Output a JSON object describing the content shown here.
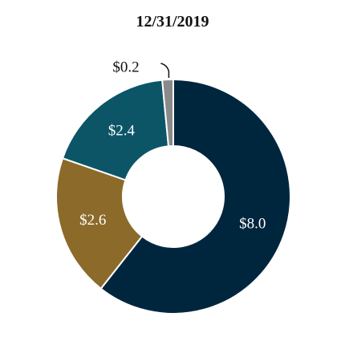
{
  "chart_data": {
    "type": "pie",
    "title": "12/31/2019",
    "hole": "donut",
    "categories": [
      "",
      "",
      "",
      ""
    ],
    "values": [
      8.0,
      2.6,
      2.4,
      0.2
    ],
    "labels": [
      "$8.0",
      "$2.6",
      "$2.4",
      "$0.2"
    ],
    "colors": [
      "#00263e",
      "#8c6a2a",
      "#0b5567",
      "#8a8a8a"
    ],
    "label_colors": [
      "#ffffff",
      "#ffffff",
      "#ffffff",
      "#111111"
    ],
    "legend": "none"
  }
}
